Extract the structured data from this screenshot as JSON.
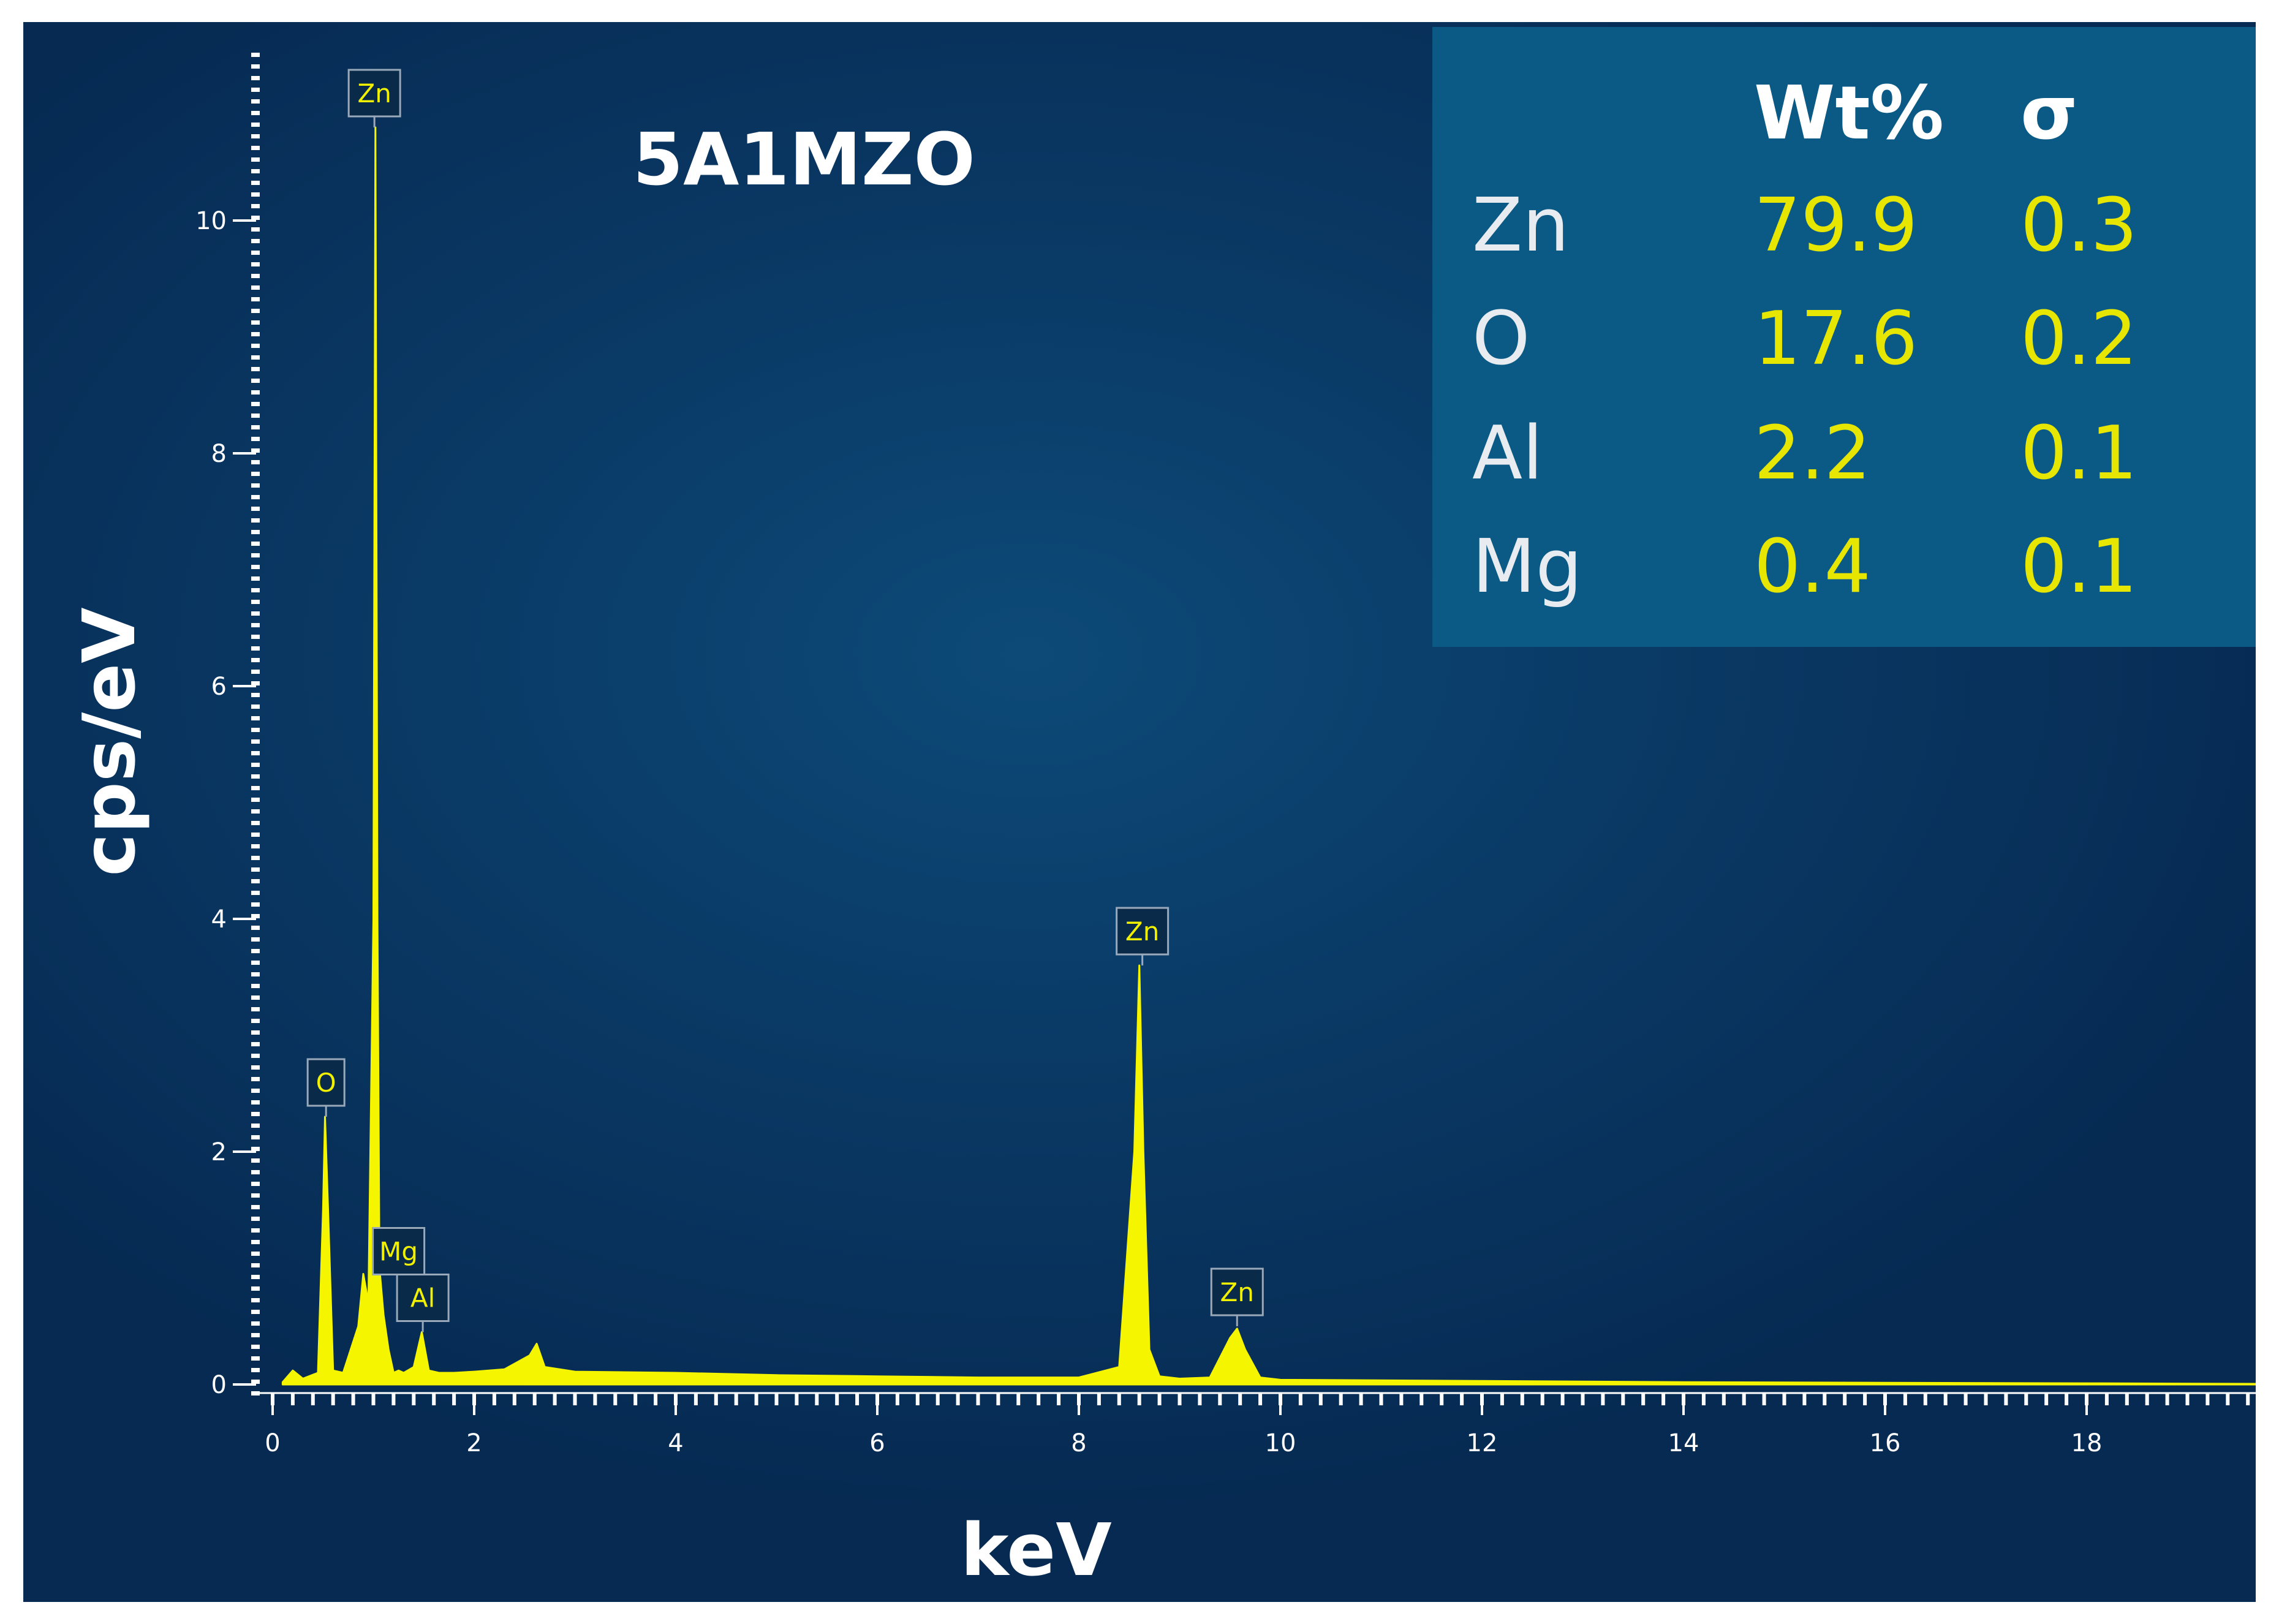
{
  "chart_data": {
    "type": "line",
    "title": "5A1MZO",
    "xlabel": "keV",
    "ylabel": "cps/eV",
    "xlim": [
      0,
      20
    ],
    "ylim": [
      0,
      11.75
    ],
    "x_ticks": [
      "0",
      "2",
      "4",
      "6",
      "8",
      "10",
      "12",
      "14",
      "16",
      "18"
    ],
    "y_ticks": [
      "0",
      "2",
      "4",
      "6",
      "8",
      "10"
    ],
    "series": [
      {
        "color": "#f5f500",
        "x": [
          0.1,
          0.2,
          0.3,
          0.45,
          0.5,
          0.52,
          0.55,
          0.6,
          0.7,
          0.85,
          0.9,
          0.95,
          1.0,
          1.02,
          1.04,
          1.06,
          1.1,
          1.15,
          1.2,
          1.25,
          1.3,
          1.4,
          1.48,
          1.55,
          1.65,
          1.8,
          2.0,
          2.3,
          2.55,
          2.62,
          2.7,
          3.0,
          4.0,
          5.0,
          6.0,
          7.0,
          8.0,
          8.4,
          8.55,
          8.6,
          8.64,
          8.7,
          8.8,
          9.0,
          9.3,
          9.5,
          9.57,
          9.65,
          9.8,
          10.0,
          12.0,
          14.0,
          16.0,
          18.0,
          19.8
        ],
        "y": [
          0.02,
          0.12,
          0.05,
          0.1,
          1.5,
          2.3,
          1.5,
          0.12,
          0.1,
          0.5,
          0.95,
          0.7,
          4.0,
          10.8,
          4.0,
          1.0,
          0.6,
          0.3,
          0.1,
          0.12,
          0.1,
          0.15,
          0.45,
          0.12,
          0.1,
          0.1,
          0.11,
          0.13,
          0.25,
          0.35,
          0.15,
          0.11,
          0.1,
          0.08,
          0.07,
          0.06,
          0.06,
          0.15,
          2.0,
          3.6,
          2.0,
          0.3,
          0.07,
          0.05,
          0.06,
          0.4,
          0.48,
          0.3,
          0.06,
          0.04,
          0.03,
          0.02,
          0.015,
          0.01,
          0.005
        ]
      }
    ],
    "peak_labels": [
      {
        "label": "Zn",
        "energy": 1.01,
        "height": 10.8
      },
      {
        "label": "O",
        "energy": 0.53,
        "height": 2.3
      },
      {
        "label": "Mg",
        "energy": 1.25,
        "height": 0.85
      },
      {
        "label": "Al",
        "energy": 1.49,
        "height": 0.45
      },
      {
        "label": "Zn",
        "energy": 8.63,
        "height": 3.6
      },
      {
        "label": "Zn",
        "energy": 9.57,
        "height": 0.5
      }
    ],
    "composition": {
      "headers": [
        "Wt%",
        "σ"
      ],
      "rows": [
        {
          "element": "Zn",
          "wt": "79.9",
          "sigma": "0.3"
        },
        {
          "element": "O",
          "wt": "17.6",
          "sigma": "0.2"
        },
        {
          "element": "Al",
          "wt": "2.2",
          "sigma": "0.1"
        },
        {
          "element": "Mg",
          "wt": "0.4",
          "sigma": "0.1"
        }
      ]
    },
    "colors": {
      "background": "#0a3a66",
      "table_background": "#0b5a86",
      "spectrum": "#f5f500",
      "values": "#e6e600",
      "text": "#ffffff"
    }
  }
}
